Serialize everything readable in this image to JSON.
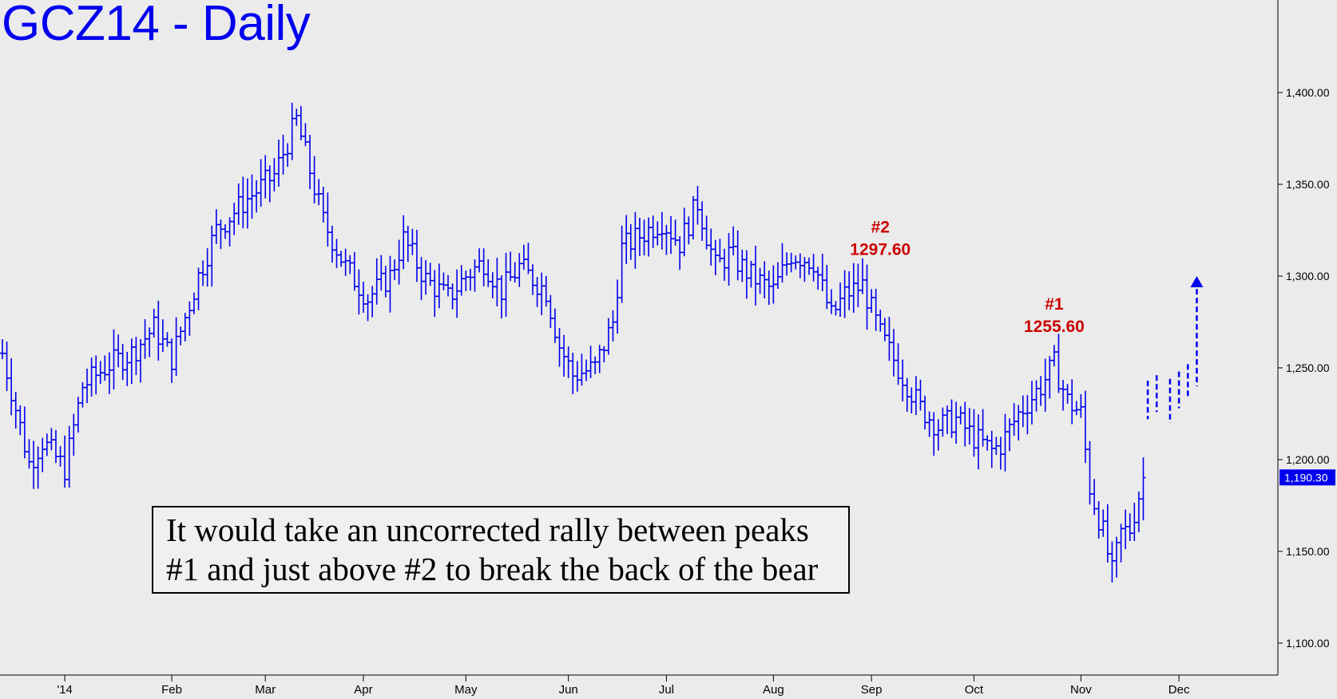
{
  "chart_title": "GCZ14 - Daily",
  "annotation_box": {
    "line1": "It would take an uncorrected rally between peaks",
    "line2": "#1 and just above #2 to break the back of the bear"
  },
  "colors": {
    "background": "#ebebeb",
    "bars": "#0000ee",
    "labels_red": "#cc0000",
    "axis": "#000000",
    "last_price_badge": "#0000ee"
  },
  "chart_data": {
    "type": "ohlc-bar",
    "title": "GCZ14 - Daily",
    "ylim": [
      1080,
      1460
    ],
    "yticks": [
      1100,
      1150,
      1200,
      1250,
      1300,
      1350,
      1400
    ],
    "ytick_labels": [
      "1,100.00",
      "1,150.00",
      "1,200.00",
      "1,250.00",
      "1,300.00",
      "1,350.00",
      "1,400.00"
    ],
    "last_price": 1190.3,
    "last_price_label": "1,190.30",
    "x_unit": "trading-day index",
    "x_range": [
      0,
      248
    ],
    "xticks": [
      {
        "label": "'14",
        "x": 14
      },
      {
        "label": "Feb",
        "x": 38
      },
      {
        "label": "Mar",
        "x": 59
      },
      {
        "label": "Apr",
        "x": 81
      },
      {
        "label": "May",
        "x": 104
      },
      {
        "label": "Jun",
        "x": 127
      },
      {
        "label": "Jul",
        "x": 149
      },
      {
        "label": "Aug",
        "x": 173
      },
      {
        "label": "Sep",
        "x": 195
      },
      {
        "label": "Oct",
        "x": 218
      },
      {
        "label": "Nov",
        "x": 242
      },
      {
        "label": "Dec",
        "x": 264
      }
    ],
    "price_path": [
      [
        0,
        1258
      ],
      [
        6,
        1198
      ],
      [
        9,
        1210
      ],
      [
        14,
        1195
      ],
      [
        18,
        1240
      ],
      [
        24,
        1252
      ],
      [
        29,
        1258
      ],
      [
        34,
        1272
      ],
      [
        38,
        1255
      ],
      [
        44,
        1300
      ],
      [
        48,
        1325
      ],
      [
        54,
        1340
      ],
      [
        61,
        1355
      ],
      [
        66,
        1385
      ],
      [
        72,
        1330
      ],
      [
        77,
        1305
      ],
      [
        82,
        1288
      ],
      [
        87,
        1300
      ],
      [
        90,
        1320
      ],
      [
        95,
        1298
      ],
      [
        100,
        1288
      ],
      [
        104,
        1300
      ],
      [
        108,
        1308
      ],
      [
        112,
        1292
      ],
      [
        116,
        1305
      ],
      [
        122,
        1292
      ],
      [
        125,
        1262
      ],
      [
        128,
        1246
      ],
      [
        133,
        1250
      ],
      [
        137,
        1275
      ],
      [
        139,
        1315
      ],
      [
        143,
        1322
      ],
      [
        148,
        1330
      ],
      [
        152,
        1318
      ],
      [
        156,
        1340
      ],
      [
        160,
        1305
      ],
      [
        163,
        1312
      ],
      [
        168,
        1300
      ],
      [
        173,
        1292
      ],
      [
        177,
        1312
      ],
      [
        182,
        1308
      ],
      [
        186,
        1278
      ],
      [
        189,
        1290
      ],
      [
        193,
        1295
      ],
      [
        197,
        1268
      ],
      [
        201,
        1250
      ],
      [
        206,
        1228
      ],
      [
        210,
        1218
      ],
      [
        214,
        1222
      ],
      [
        218,
        1212
      ],
      [
        222,
        1205
      ],
      [
        224,
        1208
      ],
      [
        228,
        1225
      ],
      [
        233,
        1240
      ],
      [
        236,
        1252
      ],
      [
        239,
        1232
      ],
      [
        242,
        1225
      ],
      [
        244,
        1185
      ],
      [
        247,
        1160
      ],
      [
        249,
        1138
      ],
      [
        251,
        1160
      ],
      [
        253,
        1162
      ],
      [
        256,
        1190
      ]
    ],
    "projection_bars": [
      {
        "x": 257,
        "high": 1243,
        "low": 1222
      },
      {
        "x": 259,
        "high": 1246,
        "low": 1226
      },
      {
        "x": 262,
        "high": 1244,
        "low": 1220
      },
      {
        "x": 264,
        "high": 1248,
        "low": 1228
      },
      {
        "x": 266,
        "high": 1252,
        "low": 1234
      },
      {
        "x": 268,
        "high": 1293,
        "low": 1240
      }
    ],
    "projection_arrow_tip": 1300,
    "annotations": [
      {
        "name": "peak-2",
        "line1": "#2",
        "line2": "1297.60",
        "x": 197,
        "value": 1297.6
      },
      {
        "name": "peak-1",
        "line1": "#1",
        "line2": "1255.60",
        "x": 236,
        "value": 1255.6
      }
    ]
  }
}
